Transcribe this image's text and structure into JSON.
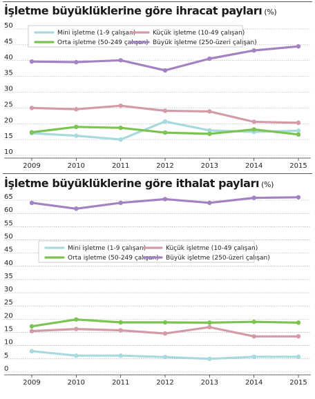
{
  "chart_data": [
    {
      "type": "line",
      "title": "İşletme büyüklüklerine göre ihracat payları",
      "unit": "(%)",
      "categories": [
        "2009",
        "2010",
        "2011",
        "2012",
        "2013",
        "2014",
        "2015"
      ],
      "ylim": [
        10,
        50
      ],
      "yticks": [
        10,
        15,
        20,
        25,
        30,
        35,
        40,
        45,
        50
      ],
      "grid": true,
      "legend": "top",
      "series": [
        {
          "name": "Mini işletme (1-9 çalışan)",
          "color": "#a8d9df",
          "values": [
            17.0,
            16.2,
            15.0,
            20.7,
            17.9,
            17.4,
            17.8
          ]
        },
        {
          "name": "Küçük işletme (10-49 çalışan)",
          "color": "#d39aa7",
          "values": [
            25.0,
            24.6,
            25.7,
            24.1,
            23.9,
            20.6,
            20.3
          ]
        },
        {
          "name": "Orta işletme (50-249 çalışan)",
          "color": "#7cc452",
          "values": [
            17.3,
            19.0,
            18.7,
            17.2,
            16.8,
            18.2,
            16.6
          ]
        },
        {
          "name": "Büyük işletme (250-üzeri çalışan)",
          "color": "#a482c2",
          "values": [
            39.7,
            39.5,
            40.1,
            36.9,
            40.6,
            43.2,
            44.5
          ]
        }
      ]
    },
    {
      "type": "line",
      "title": "İşletme büyüklüklerine göre ithalat payları",
      "unit": "(%)",
      "categories": [
        "2009",
        "2010",
        "2011",
        "2012",
        "2013",
        "2014",
        "2015"
      ],
      "ylim": [
        0,
        65
      ],
      "yticks": [
        0,
        5,
        10,
        15,
        20,
        25,
        30,
        35,
        40,
        45,
        50,
        55,
        60,
        65
      ],
      "grid": true,
      "legend": "center",
      "series": [
        {
          "name": "Mini işletme (1-9 çalışan)",
          "color": "#a8d9df",
          "values": [
            7.9,
            6.2,
            6.2,
            5.7,
            5.0,
            5.8,
            5.8
          ]
        },
        {
          "name": "Küçük işletme (10-49 çalışan)",
          "color": "#d39aa7",
          "values": [
            15.5,
            16.3,
            15.8,
            14.6,
            17.0,
            13.5,
            13.5
          ]
        },
        {
          "name": "Orta işletme (50-249 çalışan)",
          "color": "#7cc452",
          "values": [
            17.3,
            19.9,
            18.8,
            18.8,
            18.7,
            19.0,
            18.7
          ]
        },
        {
          "name": "Büyük işletme (250-üzeri çalışan)",
          "color": "#a482c2",
          "values": [
            64.0,
            61.8,
            64.0,
            65.4,
            64.0,
            65.9,
            66.1
          ]
        }
      ]
    }
  ]
}
